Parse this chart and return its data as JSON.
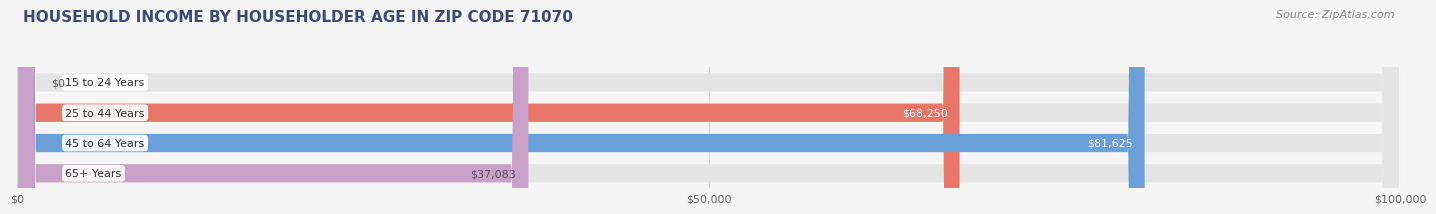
{
  "title": "HOUSEHOLD INCOME BY HOUSEHOLDER AGE IN ZIP CODE 71070",
  "source": "Source: ZipAtlas.com",
  "categories": [
    "15 to 24 Years",
    "25 to 44 Years",
    "45 to 64 Years",
    "65+ Years"
  ],
  "values": [
    0,
    68250,
    81625,
    37083
  ],
  "bar_colors": [
    "#f2c49e",
    "#e8756a",
    "#6a9fd8",
    "#c9a0c8"
  ],
  "label_colors": [
    "#555555",
    "#ffffff",
    "#ffffff",
    "#555555"
  ],
  "bg_color": "#f5f5f5",
  "bar_bg_color": "#e4e4e4",
  "label_bg_color": "#ffffff",
  "xlim": [
    0,
    100000
  ],
  "xticks": [
    0,
    50000,
    100000
  ],
  "xtick_labels": [
    "$0",
    "$50,000",
    "$100,000"
  ],
  "title_color": "#3a4a7a",
  "title_fontsize": 11,
  "source_fontsize": 8,
  "value_labels": [
    "$0",
    "$68,250",
    "$81,625",
    "$37,083"
  ],
  "grid_color": "#d8d8d8"
}
